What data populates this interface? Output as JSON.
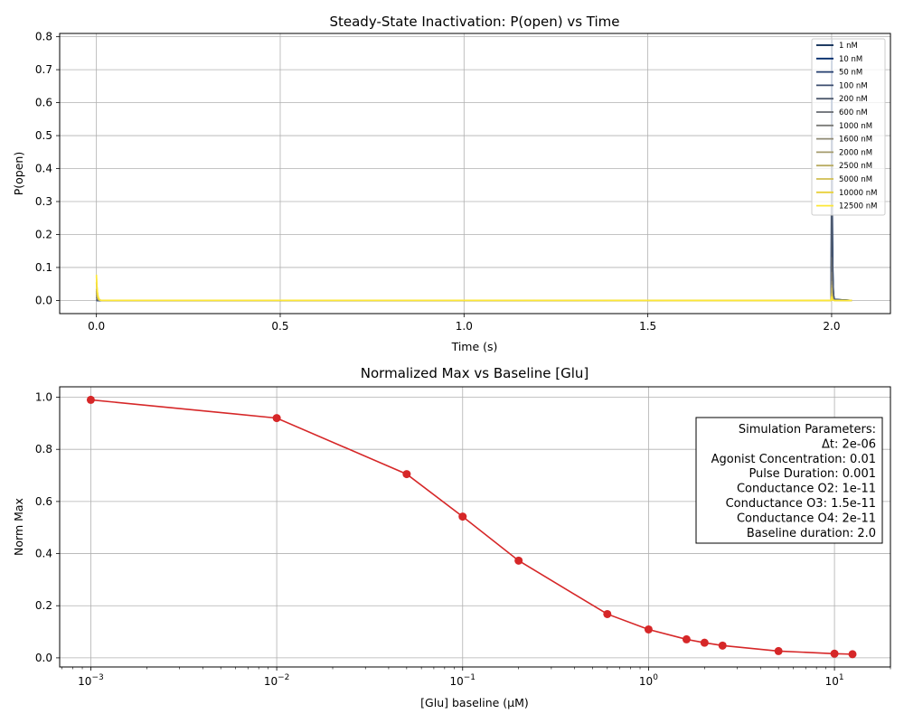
{
  "chart_data": [
    {
      "type": "line",
      "title": "Steady-State Inactivation: P(open) vs Time",
      "xlabel": "Time (s)",
      "ylabel": "P(open)",
      "xlim": [
        -0.1,
        2.16
      ],
      "ylim": [
        -0.04,
        0.81
      ],
      "xticks": [
        0.0,
        0.5,
        1.0,
        1.5,
        2.0
      ],
      "xtick_labels": [
        "0.0",
        "0.5",
        "1.0",
        "1.5",
        "2.0"
      ],
      "yticks": [
        0.0,
        0.1,
        0.2,
        0.3,
        0.4,
        0.5,
        0.6,
        0.7,
        0.8
      ],
      "ytick_labels": [
        "0.0",
        "0.1",
        "0.2",
        "0.3",
        "0.4",
        "0.5",
        "0.6",
        "0.7",
        "0.8"
      ],
      "grid": true,
      "legend_position": "top-right",
      "series": [
        {
          "name": "1 nM",
          "color": "#00204c",
          "baseline_peak": 0.0,
          "pulse_peak": 0.79
        },
        {
          "name": "10 nM",
          "color": "#002b6b",
          "baseline_peak": 0.0,
          "pulse_peak": 0.74
        },
        {
          "name": "50 nM",
          "color": "#233d6e",
          "baseline_peak": 0.001,
          "pulse_peak": 0.56
        },
        {
          "name": "100 nM",
          "color": "#3b4c6e",
          "baseline_peak": 0.002,
          "pulse_peak": 0.43
        },
        {
          "name": "200 nM",
          "color": "#4f5b6e",
          "baseline_peak": 0.004,
          "pulse_peak": 0.3
        },
        {
          "name": "600 nM",
          "color": "#656a70",
          "baseline_peak": 0.01,
          "pulse_peak": 0.13
        },
        {
          "name": "1000 nM",
          "color": "#7a7a76",
          "baseline_peak": 0.016,
          "pulse_peak": 0.085
        },
        {
          "name": "1600 nM",
          "color": "#8f8a74",
          "baseline_peak": 0.024,
          "pulse_peak": 0.057
        },
        {
          "name": "2000 nM",
          "color": "#a49b6c",
          "baseline_peak": 0.029,
          "pulse_peak": 0.046
        },
        {
          "name": "2500 nM",
          "color": "#b9ac61",
          "baseline_peak": 0.035,
          "pulse_peak": 0.037
        },
        {
          "name": "5000 nM",
          "color": "#d0be50",
          "baseline_peak": 0.055,
          "pulse_peak": 0.02
        },
        {
          "name": "10000 nM",
          "color": "#e8d13a",
          "baseline_peak": 0.073,
          "pulse_peak": 0.012
        },
        {
          "name": "12500 nM",
          "color": "#fde737",
          "baseline_peak": 0.078,
          "pulse_peak": 0.01
        }
      ]
    },
    {
      "type": "line",
      "title": "Normalized Max vs Baseline [Glu]",
      "xlabel": "[Glu] baseline (μM)",
      "ylabel": "Norm Max",
      "xscale": "log",
      "xlim": [
        0.00068,
        20
      ],
      "ylim": [
        -0.035,
        1.04
      ],
      "xtick_exponents": [
        "−3",
        "−2",
        "−1",
        "0",
        "1"
      ],
      "xtick_values": [
        0.001,
        0.01,
        0.1,
        1,
        10
      ],
      "yticks": [
        0.0,
        0.2,
        0.4,
        0.6,
        0.8,
        1.0
      ],
      "ytick_labels": [
        "0.0",
        "0.2",
        "0.4",
        "0.6",
        "0.8",
        "1.0"
      ],
      "grid": true,
      "color": "#d62728",
      "x": [
        0.001,
        0.01,
        0.05,
        0.1,
        0.2,
        0.6,
        1.0,
        1.6,
        2.0,
        2.5,
        5.0,
        10.0,
        12.5
      ],
      "y": [
        0.99,
        0.92,
        0.705,
        0.542,
        0.373,
        0.168,
        0.109,
        0.071,
        0.058,
        0.047,
        0.026,
        0.016,
        0.014
      ],
      "annotation": [
        "Simulation Parameters:",
        "Δt: 2e-06",
        "Agonist Concentration: 0.01",
        "Pulse Duration: 0.001",
        "Conductance O2: 1e-11",
        "Conductance O3: 1.5e-11",
        "Conductance O4: 2e-11",
        "Baseline duration: 2.0"
      ]
    }
  ]
}
